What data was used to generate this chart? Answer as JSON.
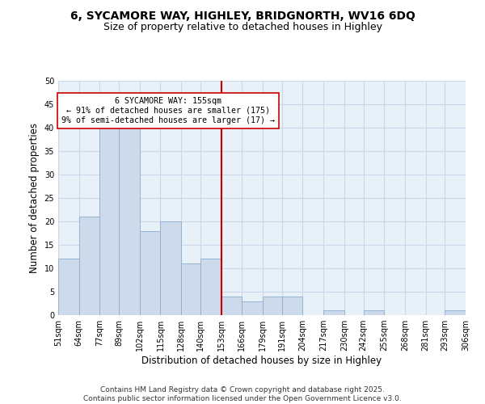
{
  "title": "6, SYCAMORE WAY, HIGHLEY, BRIDGNORTH, WV16 6DQ",
  "subtitle": "Size of property relative to detached houses in Highley",
  "xlabel": "Distribution of detached houses by size in Highley",
  "ylabel": "Number of detached properties",
  "bar_edges": [
    51,
    64,
    77,
    89,
    102,
    115,
    128,
    140,
    153,
    166,
    179,
    191,
    204,
    217,
    230,
    242,
    255,
    268,
    281,
    293,
    306
  ],
  "bar_heights": [
    12,
    21,
    40,
    41,
    18,
    20,
    11,
    12,
    4,
    3,
    4,
    4,
    0,
    1,
    0,
    1,
    0,
    0,
    0,
    1
  ],
  "bar_color": "#cddaeb",
  "bar_edgecolor": "#8aaece",
  "property_line_x": 153,
  "property_line_color": "#cc0000",
  "annotation_text": "6 SYCAMORE WAY: 155sqm\n← 91% of detached houses are smaller (175)\n9% of semi-detached houses are larger (17) →",
  "annotation_box_edgecolor": "#cc0000",
  "annotation_box_facecolor": "#ffffff",
  "ylim": [
    0,
    50
  ],
  "yticks": [
    0,
    5,
    10,
    15,
    20,
    25,
    30,
    35,
    40,
    45,
    50
  ],
  "tick_labels": [
    "51sqm",
    "64sqm",
    "77sqm",
    "89sqm",
    "102sqm",
    "115sqm",
    "128sqm",
    "140sqm",
    "153sqm",
    "166sqm",
    "179sqm",
    "191sqm",
    "204sqm",
    "217sqm",
    "230sqm",
    "242sqm",
    "255sqm",
    "268sqm",
    "281sqm",
    "293sqm",
    "306sqm"
  ],
  "grid_color": "#c8d8e8",
  "background_color": "#e8f0f8",
  "title_fontsize": 10,
  "subtitle_fontsize": 9,
  "axis_label_fontsize": 8.5,
  "tick_fontsize": 7,
  "footer_text": "Contains HM Land Registry data © Crown copyright and database right 2025.\nContains public sector information licensed under the Open Government Licence v3.0.",
  "footer_fontsize": 6.5
}
